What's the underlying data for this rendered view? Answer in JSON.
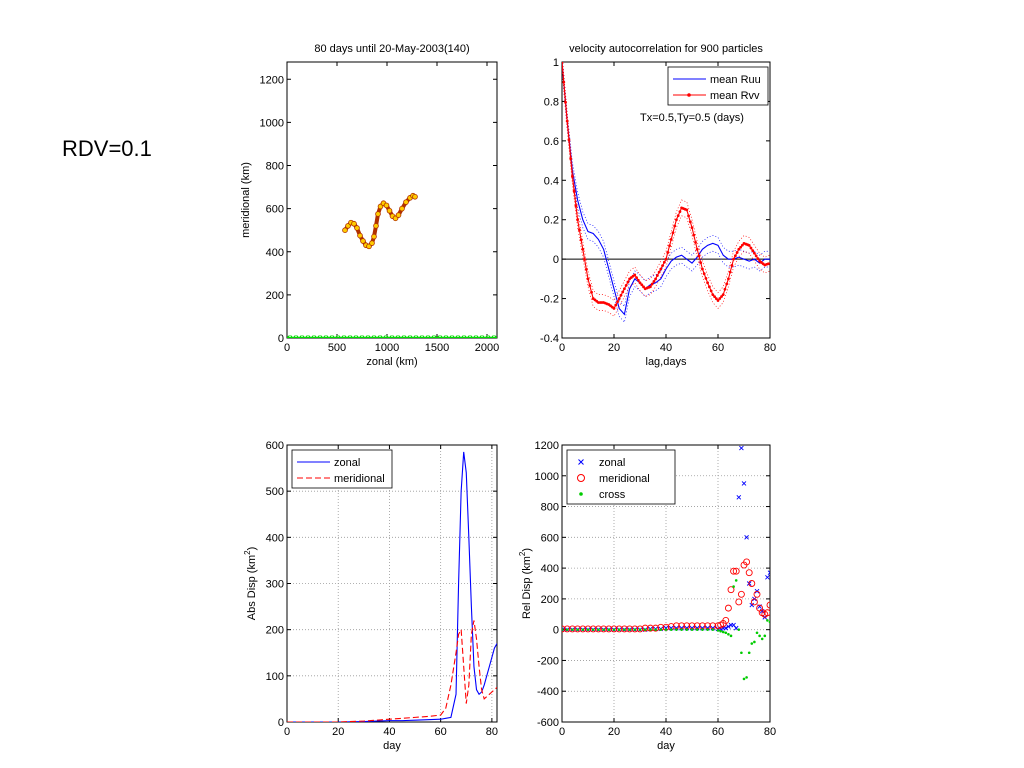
{
  "side_label": "RDV=0.1",
  "chart_data": [
    {
      "type": "scatter",
      "title": "80 days until 20-May-2003(140)",
      "xlabel": "zonal (km)",
      "ylabel": "meridional (km)",
      "xlim": [
        0,
        2100
      ],
      "ylim": [
        0,
        1280
      ],
      "xticks": [
        0,
        500,
        1000,
        1500,
        2000
      ],
      "yticks": [
        0,
        200,
        400,
        600,
        800,
        1000,
        1200
      ],
      "grid": false,
      "series": [
        {
          "color": "#b03000",
          "points": [
            [
              580,
              500
            ],
            [
              610,
              520
            ],
            [
              640,
              535
            ],
            [
              670,
              530
            ],
            [
              700,
              510
            ],
            [
              730,
              475
            ],
            [
              760,
              450
            ],
            [
              790,
              430
            ],
            [
              820,
              425
            ],
            [
              850,
              440
            ],
            [
              870,
              470
            ],
            [
              890,
              520
            ],
            [
              910,
              575
            ],
            [
              935,
              610
            ],
            [
              965,
              625
            ],
            [
              995,
              615
            ],
            [
              1025,
              590
            ],
            [
              1055,
              565
            ],
            [
              1085,
              555
            ],
            [
              1115,
              570
            ],
            [
              1150,
              600
            ],
            [
              1190,
              630
            ],
            [
              1230,
              650
            ],
            [
              1260,
              660
            ],
            [
              1280,
              655
            ]
          ]
        },
        {
          "color": "#00dd00",
          "points": [
            [
              0,
              0
            ],
            [
              60,
              0
            ],
            [
              120,
              0
            ],
            [
              180,
              0
            ],
            [
              240,
              0
            ],
            [
              300,
              0
            ],
            [
              360,
              0
            ],
            [
              420,
              0
            ],
            [
              480,
              0
            ],
            [
              540,
              0
            ],
            [
              600,
              0
            ],
            [
              660,
              0
            ],
            [
              720,
              0
            ],
            [
              780,
              0
            ],
            [
              840,
              0
            ],
            [
              900,
              0
            ],
            [
              960,
              0
            ],
            [
              1020,
              0
            ],
            [
              1080,
              0
            ],
            [
              1140,
              0
            ],
            [
              1200,
              0
            ],
            [
              1260,
              0
            ],
            [
              1320,
              0
            ],
            [
              1380,
              0
            ],
            [
              1440,
              0
            ],
            [
              1500,
              0
            ],
            [
              1560,
              0
            ],
            [
              1620,
              0
            ],
            [
              1680,
              0
            ],
            [
              1740,
              0
            ],
            [
              1800,
              0
            ],
            [
              1860,
              0
            ],
            [
              1920,
              0
            ],
            [
              1980,
              0
            ],
            [
              2040,
              0
            ],
            [
              2100,
              0
            ]
          ]
        }
      ]
    },
    {
      "type": "line",
      "title": "velocity autocorrelation for 900 particles",
      "xlabel": "lag,days",
      "ylabel": "",
      "xlim": [
        0,
        80
      ],
      "ylim": [
        -0.4,
        1
      ],
      "xticks": [
        0,
        20,
        40,
        60,
        80
      ],
      "yticks": [
        -0.4,
        -0.2,
        0,
        0.2,
        0.4,
        0.6,
        0.8,
        1
      ],
      "grid": false,
      "annotation": "Tx=0.5,Ty=0.5 (days)",
      "legend_position": "top-right",
      "x": [
        0,
        2,
        4,
        6,
        8,
        10,
        12,
        14,
        16,
        18,
        20,
        22,
        24,
        26,
        28,
        30,
        32,
        34,
        36,
        38,
        40,
        42,
        44,
        46,
        48,
        50,
        52,
        54,
        56,
        58,
        60,
        62,
        64,
        66,
        68,
        70,
        72,
        74,
        76,
        78,
        80
      ],
      "series": [
        {
          "name": "mean Ruu",
          "color": "#0000ff",
          "style": "solid",
          "values": [
            1,
            0.7,
            0.45,
            0.3,
            0.2,
            0.14,
            0.13,
            0.1,
            0.05,
            -0.05,
            -0.15,
            -0.25,
            -0.28,
            -0.15,
            -0.1,
            -0.12,
            -0.15,
            -0.13,
            -0.12,
            -0.1,
            -0.05,
            -0.01,
            0.01,
            0.02,
            0,
            -0.02,
            0.01,
            0.05,
            0.07,
            0.08,
            0.07,
            0.02,
            0.0,
            0.0,
            0.01,
            0.0,
            -0.01,
            0.0,
            -0.02,
            0.0,
            0.0
          ]
        },
        {
          "name": "mean Rvv",
          "color": "#ff0000",
          "style": "solid-dots",
          "values": [
            1,
            0.7,
            0.42,
            0.2,
            0.05,
            -0.1,
            -0.2,
            -0.22,
            -0.22,
            -0.23,
            -0.25,
            -0.2,
            -0.15,
            -0.1,
            -0.08,
            -0.12,
            -0.15,
            -0.14,
            -0.1,
            -0.05,
            0.0,
            0.1,
            0.2,
            0.26,
            0.25,
            0.16,
            0.05,
            -0.05,
            -0.12,
            -0.18,
            -0.21,
            -0.18,
            -0.1,
            0.0,
            0.05,
            0.08,
            0.07,
            0.03,
            -0.01,
            -0.03,
            -0.02
          ]
        }
      ]
    },
    {
      "type": "line",
      "title": "",
      "xlabel": "day",
      "ylabel": "Abs Disp (km",
      "ylabel_sup": "2",
      "ylabel_close": ")",
      "xlim": [
        0,
        82
      ],
      "ylim": [
        0,
        600
      ],
      "xticks": [
        0,
        20,
        40,
        60,
        80
      ],
      "yticks": [
        0,
        100,
        200,
        300,
        400,
        500,
        600
      ],
      "grid": true,
      "legend_position": "top-left",
      "x": [
        0,
        10,
        20,
        30,
        35,
        40,
        45,
        50,
        55,
        60,
        62,
        64,
        66,
        67,
        68,
        69,
        70,
        71,
        72,
        73,
        74,
        75,
        76,
        77,
        78,
        79,
        80,
        81,
        82
      ],
      "series": [
        {
          "name": "zonal",
          "color": "#0000ff",
          "style": "solid",
          "values": [
            0,
            0,
            0,
            1,
            2,
            3,
            3,
            4,
            5,
            6,
            8,
            10,
            60,
            300,
            500,
            585,
            540,
            400,
            250,
            120,
            70,
            60,
            65,
            80,
            100,
            120,
            140,
            160,
            170
          ]
        },
        {
          "name": "meridional",
          "color": "#ff0000",
          "style": "dashed",
          "values": [
            0,
            0,
            0,
            2,
            4,
            6,
            8,
            10,
            12,
            15,
            30,
            80,
            150,
            190,
            200,
            120,
            40,
            80,
            190,
            220,
            180,
            120,
            70,
            50,
            55,
            60,
            65,
            70,
            75
          ]
        }
      ]
    },
    {
      "type": "scatter",
      "title": "",
      "xlabel": "day",
      "ylabel": "Rel Disp (km",
      "ylabel_sup": "2",
      "ylabel_close": ")",
      "xlim": [
        0,
        80
      ],
      "ylim": [
        -600,
        1200
      ],
      "xticks": [
        0,
        20,
        40,
        60,
        80
      ],
      "yticks": [
        -600,
        -400,
        -200,
        0,
        200,
        400,
        600,
        800,
        1000,
        1200
      ],
      "grid": true,
      "legend_position": "top-left",
      "x": [
        0,
        2,
        4,
        6,
        8,
        10,
        12,
        14,
        16,
        18,
        20,
        22,
        24,
        26,
        28,
        30,
        32,
        34,
        36,
        38,
        40,
        42,
        44,
        46,
        48,
        50,
        52,
        54,
        56,
        58,
        60,
        61,
        62,
        63,
        64,
        65,
        66,
        67,
        68,
        69,
        70,
        71,
        72,
        73,
        74,
        75,
        76,
        77,
        78,
        79,
        80
      ],
      "series": [
        {
          "name": "zonal",
          "color": "#0000ff",
          "marker": "x",
          "values": [
            0,
            0,
            0,
            0,
            0,
            0,
            0,
            0,
            0,
            0,
            0,
            0,
            0,
            0,
            0,
            0,
            0,
            5,
            5,
            5,
            10,
            10,
            10,
            10,
            10,
            10,
            10,
            10,
            10,
            10,
            5,
            5,
            10,
            10,
            20,
            30,
            30,
            10,
            860,
            1180,
            950,
            600,
            300,
            160,
            200,
            250,
            150,
            120,
            80,
            340,
            370
          ]
        },
        {
          "name": "meridional",
          "color": "#ff0000",
          "marker": "o",
          "values": [
            5,
            5,
            5,
            5,
            5,
            5,
            5,
            5,
            5,
            5,
            5,
            5,
            5,
            5,
            5,
            5,
            10,
            10,
            10,
            15,
            15,
            20,
            25,
            25,
            25,
            25,
            25,
            25,
            25,
            25,
            25,
            30,
            40,
            60,
            140,
            260,
            380,
            380,
            180,
            230,
            420,
            440,
            370,
            300,
            180,
            230,
            140,
            110,
            100,
            110,
            160
          ]
        },
        {
          "name": "cross",
          "color": "#00cc00",
          "marker": ".",
          "values": [
            0,
            0,
            0,
            0,
            0,
            0,
            0,
            0,
            0,
            0,
            0,
            0,
            0,
            0,
            0,
            0,
            0,
            0,
            0,
            0,
            0,
            0,
            0,
            0,
            0,
            0,
            0,
            0,
            0,
            0,
            -5,
            -10,
            -15,
            -20,
            -30,
            -40,
            280,
            320,
            0,
            -150,
            -320,
            -310,
            -150,
            -90,
            -80,
            -20,
            -40,
            -60,
            -40,
            60,
            50
          ]
        }
      ]
    }
  ]
}
